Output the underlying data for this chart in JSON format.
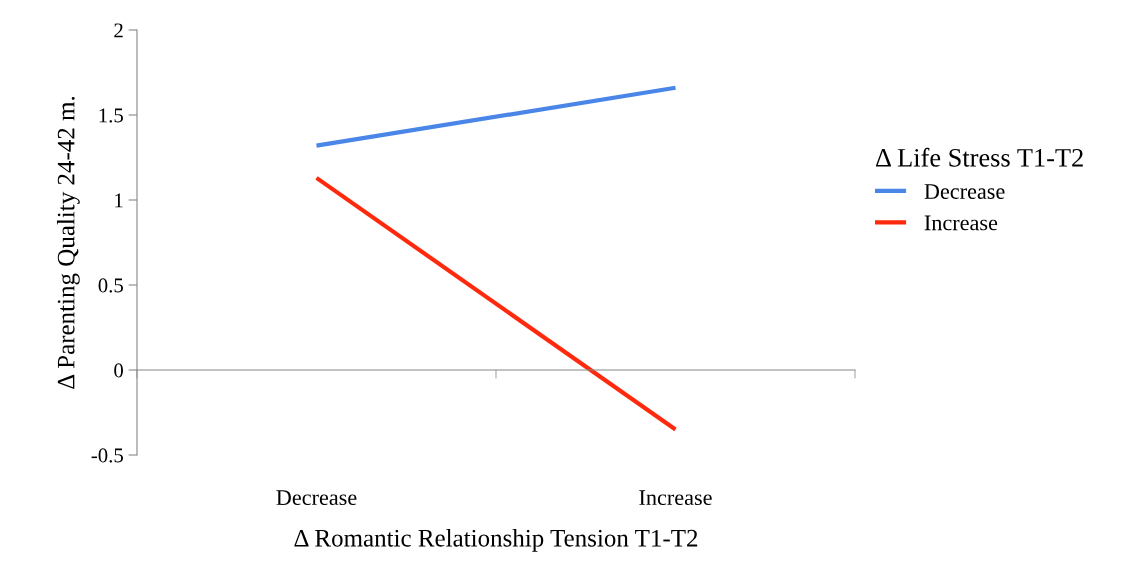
{
  "chart_data": {
    "type": "line",
    "xlabel": "Δ Romantic Relationship Tension T1-T2",
    "ylabel": "Δ Parenting Quality 24-42 m.",
    "legend_title": "Δ Life Stress T1-T2",
    "categories": [
      "Decrease",
      "Increase"
    ],
    "series": [
      {
        "name": "Decrease",
        "color": "#4a86e8",
        "values": [
          1.32,
          1.66
        ]
      },
      {
        "name": "Increase",
        "color": "#ff2a0d",
        "values": [
          1.13,
          -0.35
        ]
      }
    ],
    "ylim": [
      -0.5,
      2
    ],
    "yticks": [
      -0.5,
      0,
      0.5,
      1,
      1.5,
      2
    ],
    "legend": "right",
    "marker": "none",
    "line_style": "solid"
  }
}
